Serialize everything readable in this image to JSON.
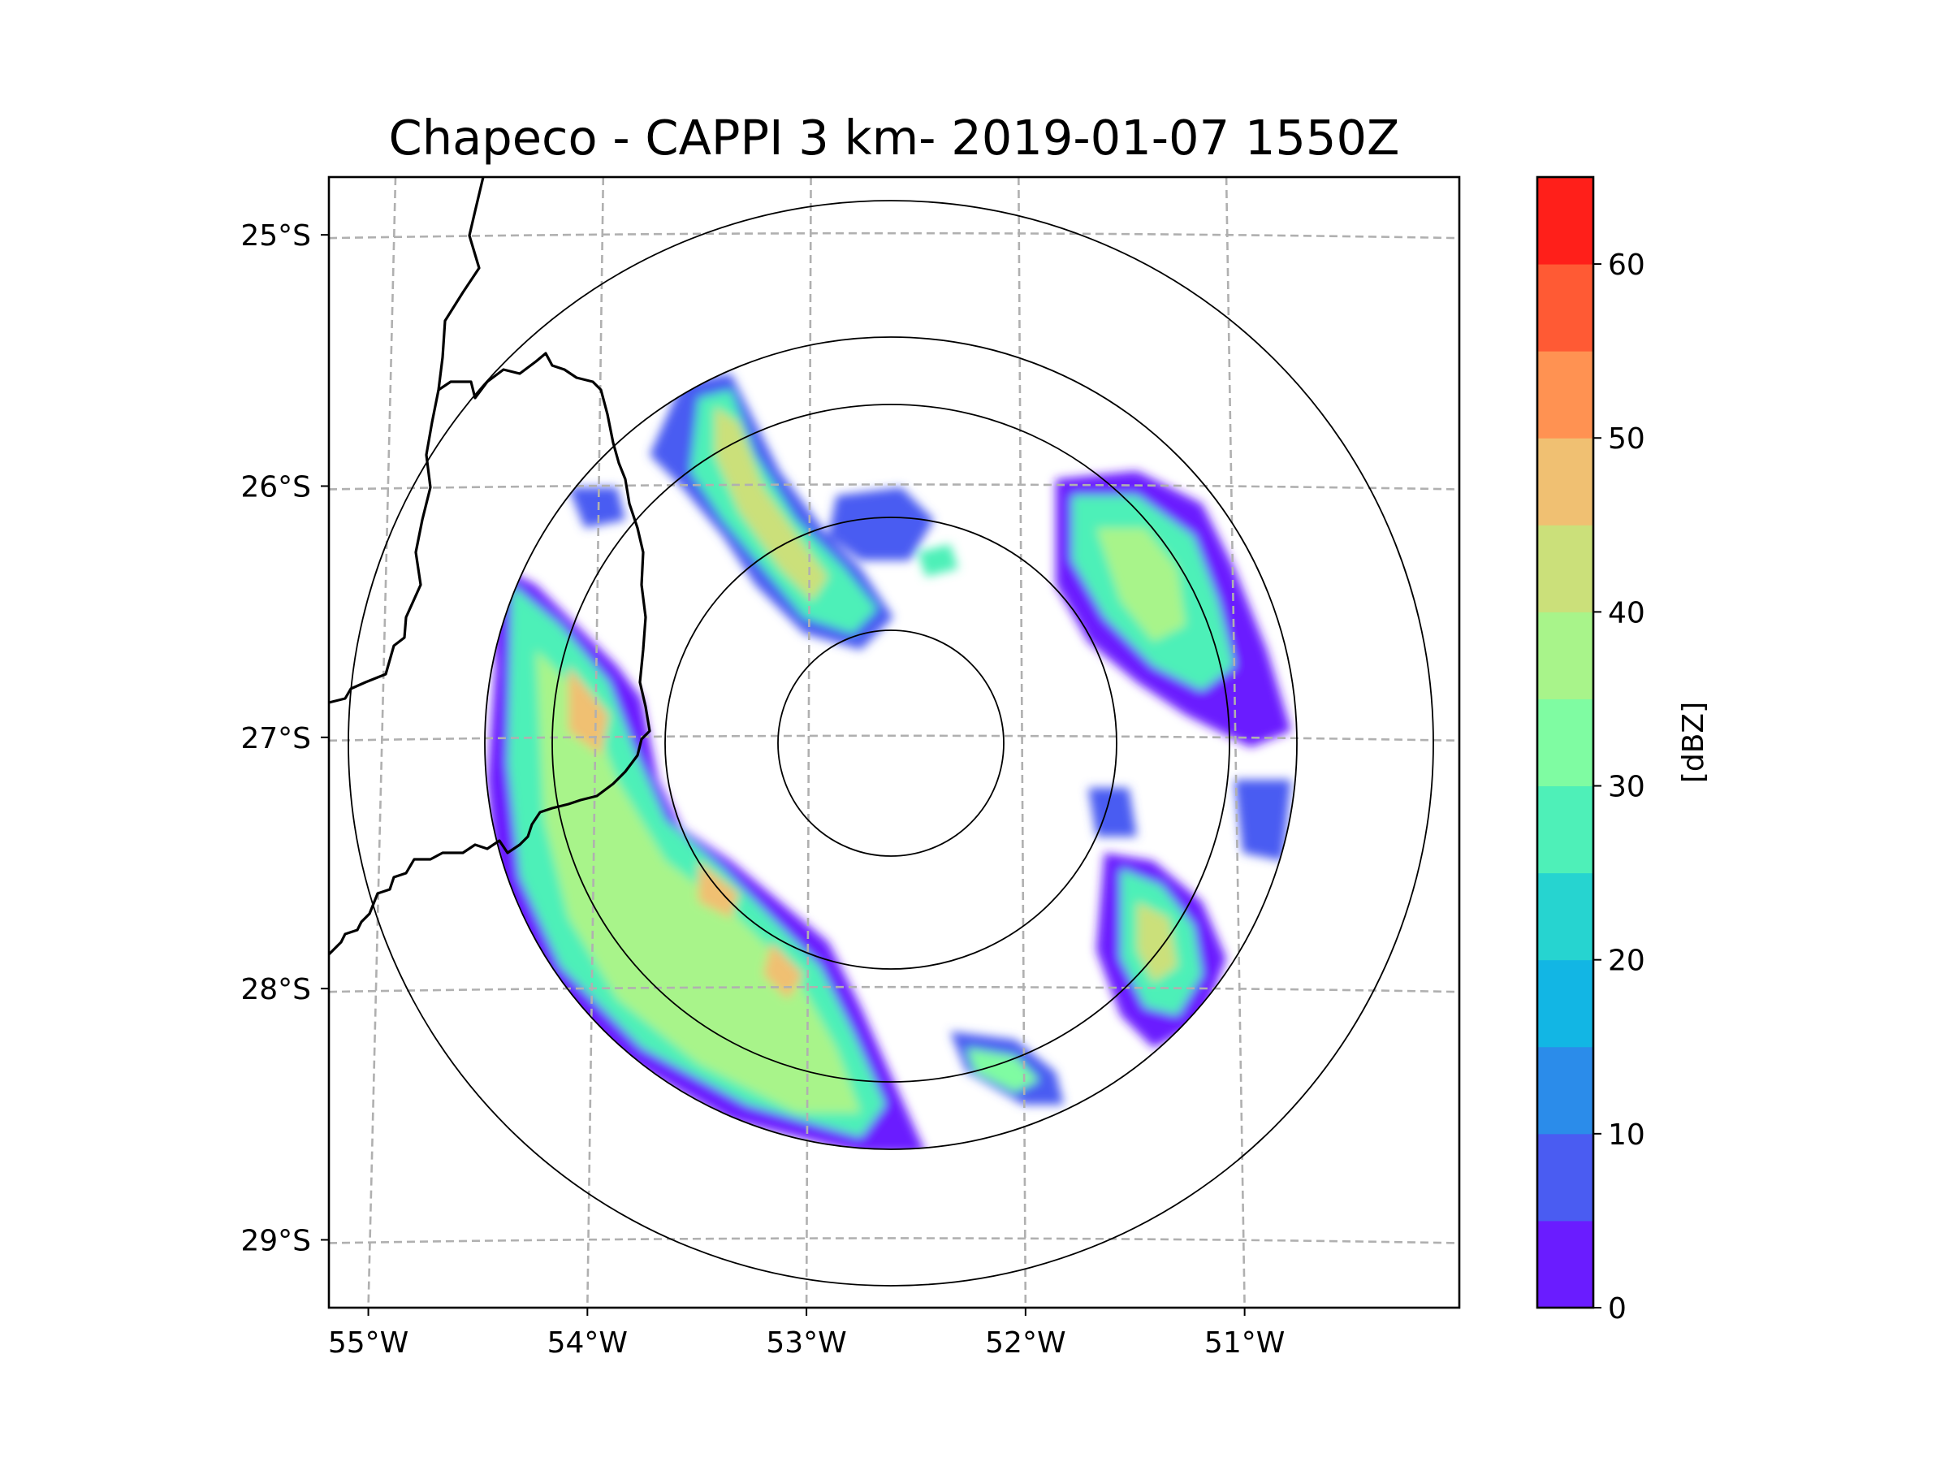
{
  "title": "Chapeco - CAPPI 3 km- 2019-01-07 1550Z",
  "map": {
    "extent_lon": [
      -55.18,
      -50.02
    ],
    "extent_lat": [
      -29.27,
      -24.77
    ],
    "radar_center": {
      "lon": -52.61,
      "lat": -27.03
    },
    "range_rings_km": [
      50,
      100,
      150,
      240
    ],
    "lat_ticks": [
      {
        "value": -25,
        "label": "25°S"
      },
      {
        "value": -26,
        "label": "26°S"
      },
      {
        "value": -27,
        "label": "27°S"
      },
      {
        "value": -28,
        "label": "28°S"
      },
      {
        "value": -29,
        "label": "29°S"
      }
    ],
    "lon_ticks": [
      {
        "value": -55,
        "label": "55°W"
      },
      {
        "value": -54,
        "label": "54°W"
      },
      {
        "value": -53,
        "label": "53°W"
      },
      {
        "value": -52,
        "label": "52°W"
      },
      {
        "value": -51,
        "label": "51°W"
      }
    ]
  },
  "colorbar": {
    "label": "[dBZ]",
    "min": 0,
    "max": 65,
    "ticks": [
      {
        "value": 0,
        "label": "0"
      },
      {
        "value": 10,
        "label": "10"
      },
      {
        "value": 20,
        "label": "20"
      },
      {
        "value": 30,
        "label": "30"
      },
      {
        "value": 40,
        "label": "40"
      },
      {
        "value": 50,
        "label": "50"
      },
      {
        "value": 60,
        "label": "60"
      }
    ],
    "colors": [
      "#6a1cff",
      "#4a5cf2",
      "#2b8cea",
      "#12b6e4",
      "#26d4d0",
      "#4ef0b8",
      "#7ffca2",
      "#a8f48a",
      "#cbe07a",
      "#f0c072",
      "#ff9252",
      "#ff5a34",
      "#ff1f1a"
    ]
  },
  "chart_data": {
    "type": "heatmap",
    "title": "Chapeco - CAPPI 3 km- 2019-01-07 1550Z",
    "variable": "reflectivity",
    "units": "dBZ",
    "colorbar_range": [
      0,
      65
    ],
    "xlabel": "",
    "ylabel": "",
    "x_ticks": [
      "55°W",
      "54°W",
      "53°W",
      "52°W",
      "51°W"
    ],
    "y_ticks": [
      "25°S",
      "26°S",
      "27°S",
      "28°S",
      "29°S"
    ]
  }
}
